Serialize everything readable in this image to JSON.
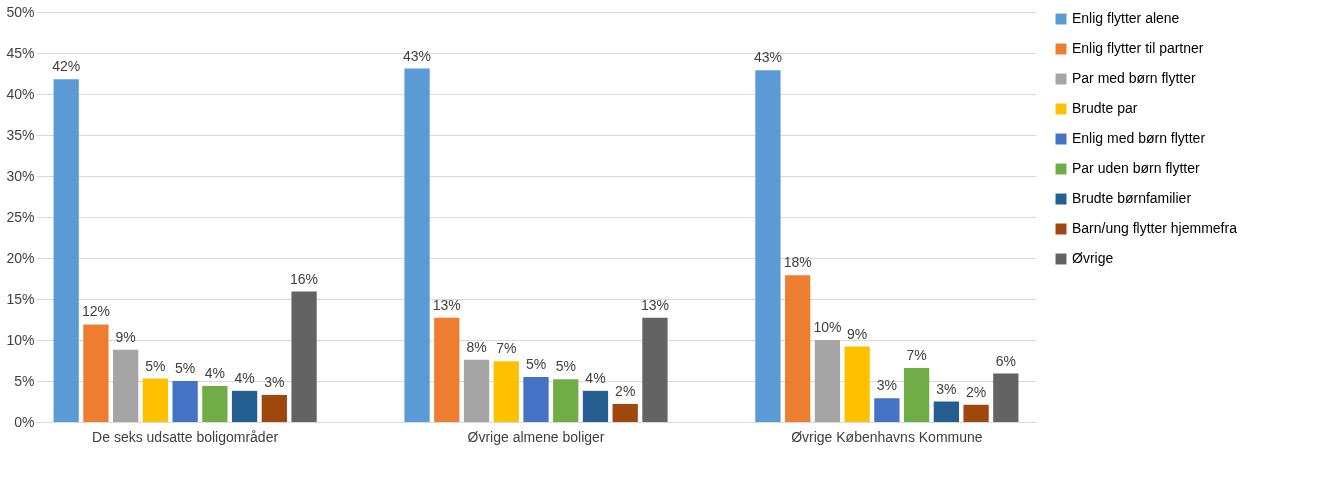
{
  "chart_data": {
    "type": "bar",
    "categories": [
      "De seks udsatte boligområder",
      "Øvrige almene boliger",
      "Øvrige Københavns Kommune"
    ],
    "ylim": [
      0,
      50
    ],
    "yticks": [
      {
        "value": 0,
        "label": "0%"
      },
      {
        "value": 5,
        "label": "5%"
      },
      {
        "value": 10,
        "label": "10%"
      },
      {
        "value": 15,
        "label": "15%"
      },
      {
        "value": 20,
        "label": "20%"
      },
      {
        "value": 25,
        "label": "25%"
      },
      {
        "value": 30,
        "label": "30%"
      },
      {
        "value": 35,
        "label": "35%"
      },
      {
        "value": 40,
        "label": "40%"
      },
      {
        "value": 45,
        "label": "45%"
      },
      {
        "value": 50,
        "label": "50%"
      }
    ],
    "grid": "y",
    "legend": "right",
    "series": [
      {
        "name": "Enlig flytter alene",
        "color": "#5b9bd5",
        "values": [
          41.8,
          43.1,
          42.9
        ],
        "value_labels": [
          "42%",
          "43%",
          "43%"
        ]
      },
      {
        "name": "Enlig flytter til partner",
        "color": "#ed7d31",
        "values": [
          11.9,
          12.7,
          17.9
        ],
        "value_labels": [
          "12%",
          "13%",
          "18%"
        ]
      },
      {
        "name": "Par med børn flytter",
        "color": "#a5a5a5",
        "values": [
          8.8,
          7.6,
          10.0
        ],
        "value_labels": [
          "9%",
          "8%",
          "10%"
        ]
      },
      {
        "name": "Brudte par",
        "color": "#ffc000",
        "values": [
          5.3,
          7.4,
          9.2
        ],
        "value_labels": [
          "5%",
          "7%",
          "9%"
        ]
      },
      {
        "name": "Enlig med børn flytter",
        "color": "#4472c4",
        "values": [
          5.0,
          5.5,
          2.9
        ],
        "value_labels": [
          "5%",
          "5%",
          "3%"
        ]
      },
      {
        "name": "Par uden børn flytter",
        "color": "#70ad47",
        "values": [
          4.4,
          5.2,
          6.6
        ],
        "value_labels": [
          "4%",
          "5%",
          "7%"
        ]
      },
      {
        "name": "Brudte børnfamilier",
        "color": "#255e91",
        "values": [
          3.8,
          3.8,
          2.5
        ],
        "value_labels": [
          "4%",
          "4%",
          "3%"
        ]
      },
      {
        "name": "Barn/ung flytter hjemmefra",
        "color": "#9e480e",
        "values": [
          3.3,
          2.2,
          2.1
        ],
        "value_labels": [
          "3%",
          "2%",
          "2%"
        ]
      },
      {
        "name": "Øvrige",
        "color": "#636363",
        "values": [
          15.9,
          12.7,
          5.9
        ],
        "value_labels": [
          "16%",
          "13%",
          "6%"
        ]
      }
    ]
  }
}
